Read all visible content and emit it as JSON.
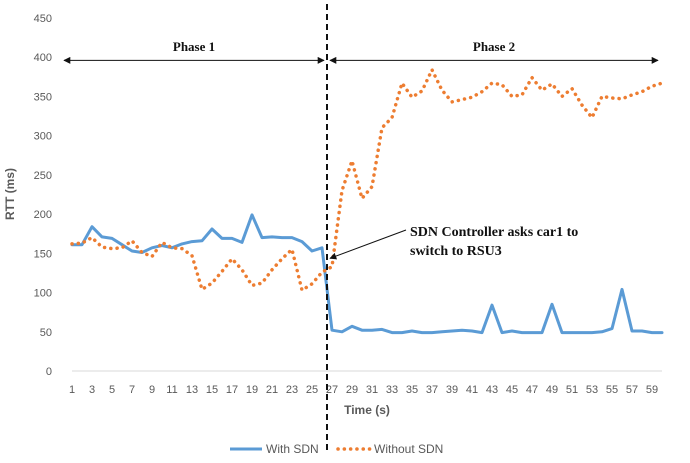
{
  "chart_data": {
    "type": "line",
    "xlabel": "Time (s)",
    "ylabel": "RTT (ms)",
    "xlim": [
      1,
      60
    ],
    "ylim": [
      0,
      450
    ],
    "yticks": [
      0,
      50,
      100,
      150,
      200,
      250,
      300,
      350,
      400,
      450
    ],
    "xticks": [
      1,
      3,
      5,
      7,
      9,
      11,
      13,
      15,
      17,
      19,
      21,
      23,
      25,
      27,
      29,
      31,
      33,
      35,
      37,
      39,
      41,
      43,
      45,
      47,
      49,
      51,
      53,
      55,
      57,
      59
    ],
    "grid": false,
    "legend_position": "bottom",
    "series": [
      {
        "name": "With SDN",
        "color": "#5b9bd5",
        "style": "solid",
        "x": [
          1,
          2,
          3,
          4,
          5,
          6,
          7,
          8,
          9,
          10,
          11,
          12,
          13,
          14,
          15,
          16,
          17,
          18,
          19,
          20,
          21,
          22,
          23,
          24,
          25,
          26,
          27,
          28,
          29,
          30,
          31,
          32,
          33,
          34,
          35,
          36,
          37,
          38,
          39,
          40,
          41,
          42,
          43,
          44,
          45,
          46,
          47,
          48,
          49,
          50,
          51,
          52,
          53,
          54,
          55,
          56,
          57,
          58,
          59,
          60
        ],
        "values": [
          161,
          161,
          184,
          171,
          169,
          161,
          153,
          151,
          157,
          160,
          157,
          162,
          165,
          166,
          181,
          169,
          169,
          164,
          199,
          170,
          171,
          170,
          170,
          165,
          153,
          157,
          52,
          50,
          57,
          52,
          52,
          53,
          49,
          49,
          51,
          49,
          49,
          50,
          51,
          52,
          51,
          49,
          84,
          49,
          51,
          49,
          49,
          49,
          85,
          49,
          49,
          49,
          49,
          50,
          54,
          104,
          51,
          51,
          49,
          49
        ]
      },
      {
        "name": "Without SDN",
        "color": "#ed7d31",
        "style": "dotted",
        "x": [
          1,
          2,
          3,
          4,
          5,
          6,
          7,
          8,
          9,
          10,
          11,
          12,
          13,
          14,
          15,
          16,
          17,
          18,
          19,
          20,
          21,
          22,
          23,
          24,
          25,
          26,
          27,
          28,
          29,
          30,
          31,
          32,
          33,
          34,
          35,
          36,
          37,
          38,
          39,
          40,
          41,
          42,
          43,
          44,
          45,
          46,
          47,
          48,
          49,
          50,
          51,
          52,
          53,
          54,
          55,
          56,
          57,
          58,
          59,
          60
        ],
        "values": [
          162,
          163,
          170,
          158,
          156,
          157,
          166,
          151,
          146,
          164,
          157,
          156,
          147,
          104,
          112,
          127,
          143,
          129,
          109,
          112,
          129,
          143,
          155,
          103,
          111,
          126,
          133,
          230,
          268,
          220,
          235,
          310,
          323,
          367,
          349,
          357,
          384,
          358,
          343,
          346,
          349,
          356,
          367,
          365,
          350,
          352,
          374,
          358,
          366,
          350,
          360,
          339,
          323,
          350,
          348,
          347,
          352,
          356,
          363,
          367
        ]
      }
    ],
    "phases": [
      {
        "label": "Phase 1",
        "from": 1,
        "to": 26.2
      },
      {
        "label": "Phase 2",
        "from": 26.8,
        "to": 60
      }
    ],
    "divider_x": 26.5,
    "annotation": {
      "lines": [
        "SDN Controller asks car1 to",
        "switch to RSU3"
      ],
      "arrow_target": {
        "x": 26.5,
        "y": 150
      }
    }
  }
}
